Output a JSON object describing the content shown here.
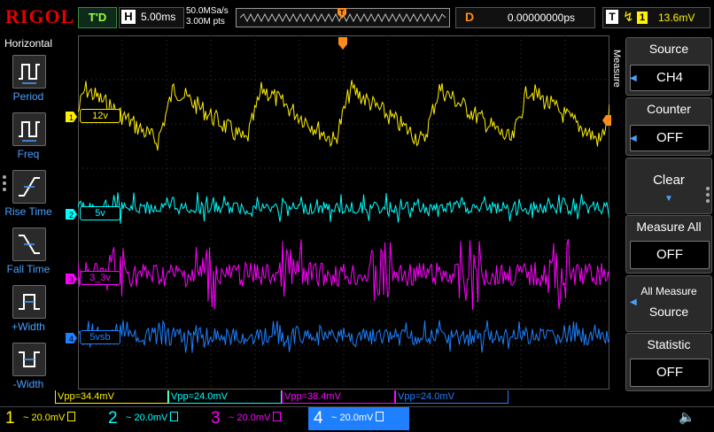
{
  "topbar": {
    "logo": "RIGOL",
    "trigger_status": "T'D",
    "horizontal_label": "H",
    "timebase": "5.00ms",
    "sample_rate": "50.0MSa/s",
    "memory_depth": "3.00M pts",
    "delay_label": "D",
    "delay_value": "0.00000000ps",
    "trigger_label": "T",
    "trigger_edge_icon": "rising-edge-icon",
    "trigger_source": "1",
    "trigger_level": "13.6mV"
  },
  "left_panel": {
    "title": "Horizontal",
    "items": [
      {
        "label": "Period"
      },
      {
        "label": "Freq"
      },
      {
        "label": "Rise Time"
      },
      {
        "label": "Fall Time"
      },
      {
        "label": "+Width"
      },
      {
        "label": "-Width"
      }
    ]
  },
  "right_panel": {
    "menu_title": "Measure",
    "source": {
      "title": "Source",
      "value": "CH4"
    },
    "counter": {
      "title": "Counter",
      "value": "OFF"
    },
    "clear": {
      "title": "Clear"
    },
    "measure_all": {
      "title": "Measure All",
      "value": "OFF"
    },
    "all_measure_source": {
      "title_line1": "All Measure",
      "title_line2": "Source"
    },
    "statistic": {
      "title": "Statistic",
      "value": "OFF"
    }
  },
  "channels": [
    {
      "num": "1",
      "label": "12v",
      "scale": "20.0mV",
      "color": "#ffef00",
      "meas": "Vpp=34.4mV"
    },
    {
      "num": "2",
      "label": "5v",
      "scale": "20.0mV",
      "color": "#00ffff",
      "meas": "Vpp=24.0mV"
    },
    {
      "num": "3",
      "label": "3_3v",
      "scale": "20.0mV",
      "color": "#ff00ff",
      "meas": "Vpp=38.4mV"
    },
    {
      "num": "4",
      "label": "5vsb",
      "scale": "20.0mV",
      "color": "#1e80ff",
      "meas": "Vpp=24.0mV"
    }
  ],
  "colors": {
    "trigger_marker": "#ff8c1a",
    "grid": "#3a3a3a",
    "label_blue": "#4aa0ff"
  }
}
